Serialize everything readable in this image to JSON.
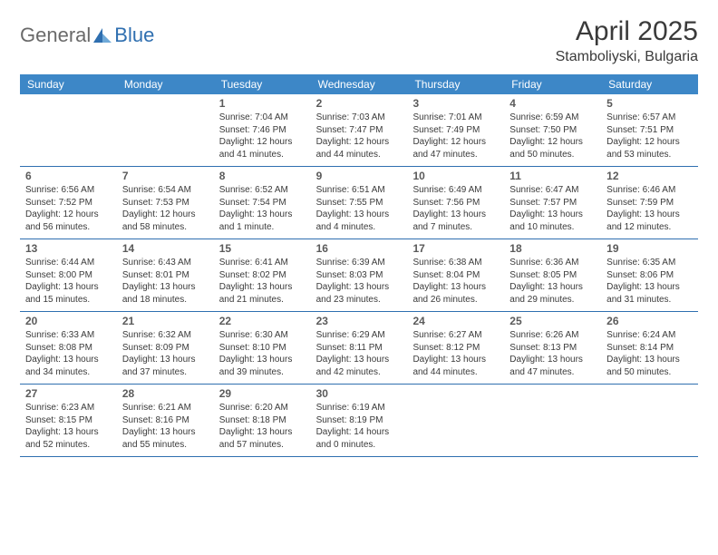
{
  "brand": {
    "general": "General",
    "blue": "Blue"
  },
  "title": "April 2025",
  "location": "Stamboliyski, Bulgaria",
  "colors": {
    "header_bg": "#3d87c7",
    "header_text": "#ffffff",
    "border": "#2f6fb0",
    "body_text": "#3a3a3a",
    "daynum": "#5a5a5a",
    "logo_gray": "#6a6a6a",
    "logo_blue": "#2f6fb0"
  },
  "dow": [
    "Sunday",
    "Monday",
    "Tuesday",
    "Wednesday",
    "Thursday",
    "Friday",
    "Saturday"
  ],
  "weeks": [
    [
      null,
      null,
      {
        "n": "1",
        "sr": "Sunrise: 7:04 AM",
        "ss": "Sunset: 7:46 PM",
        "d1": "Daylight: 12 hours",
        "d2": "and 41 minutes."
      },
      {
        "n": "2",
        "sr": "Sunrise: 7:03 AM",
        "ss": "Sunset: 7:47 PM",
        "d1": "Daylight: 12 hours",
        "d2": "and 44 minutes."
      },
      {
        "n": "3",
        "sr": "Sunrise: 7:01 AM",
        "ss": "Sunset: 7:49 PM",
        "d1": "Daylight: 12 hours",
        "d2": "and 47 minutes."
      },
      {
        "n": "4",
        "sr": "Sunrise: 6:59 AM",
        "ss": "Sunset: 7:50 PM",
        "d1": "Daylight: 12 hours",
        "d2": "and 50 minutes."
      },
      {
        "n": "5",
        "sr": "Sunrise: 6:57 AM",
        "ss": "Sunset: 7:51 PM",
        "d1": "Daylight: 12 hours",
        "d2": "and 53 minutes."
      }
    ],
    [
      {
        "n": "6",
        "sr": "Sunrise: 6:56 AM",
        "ss": "Sunset: 7:52 PM",
        "d1": "Daylight: 12 hours",
        "d2": "and 56 minutes."
      },
      {
        "n": "7",
        "sr": "Sunrise: 6:54 AM",
        "ss": "Sunset: 7:53 PM",
        "d1": "Daylight: 12 hours",
        "d2": "and 58 minutes."
      },
      {
        "n": "8",
        "sr": "Sunrise: 6:52 AM",
        "ss": "Sunset: 7:54 PM",
        "d1": "Daylight: 13 hours",
        "d2": "and 1 minute."
      },
      {
        "n": "9",
        "sr": "Sunrise: 6:51 AM",
        "ss": "Sunset: 7:55 PM",
        "d1": "Daylight: 13 hours",
        "d2": "and 4 minutes."
      },
      {
        "n": "10",
        "sr": "Sunrise: 6:49 AM",
        "ss": "Sunset: 7:56 PM",
        "d1": "Daylight: 13 hours",
        "d2": "and 7 minutes."
      },
      {
        "n": "11",
        "sr": "Sunrise: 6:47 AM",
        "ss": "Sunset: 7:57 PM",
        "d1": "Daylight: 13 hours",
        "d2": "and 10 minutes."
      },
      {
        "n": "12",
        "sr": "Sunrise: 6:46 AM",
        "ss": "Sunset: 7:59 PM",
        "d1": "Daylight: 13 hours",
        "d2": "and 12 minutes."
      }
    ],
    [
      {
        "n": "13",
        "sr": "Sunrise: 6:44 AM",
        "ss": "Sunset: 8:00 PM",
        "d1": "Daylight: 13 hours",
        "d2": "and 15 minutes."
      },
      {
        "n": "14",
        "sr": "Sunrise: 6:43 AM",
        "ss": "Sunset: 8:01 PM",
        "d1": "Daylight: 13 hours",
        "d2": "and 18 minutes."
      },
      {
        "n": "15",
        "sr": "Sunrise: 6:41 AM",
        "ss": "Sunset: 8:02 PM",
        "d1": "Daylight: 13 hours",
        "d2": "and 21 minutes."
      },
      {
        "n": "16",
        "sr": "Sunrise: 6:39 AM",
        "ss": "Sunset: 8:03 PM",
        "d1": "Daylight: 13 hours",
        "d2": "and 23 minutes."
      },
      {
        "n": "17",
        "sr": "Sunrise: 6:38 AM",
        "ss": "Sunset: 8:04 PM",
        "d1": "Daylight: 13 hours",
        "d2": "and 26 minutes."
      },
      {
        "n": "18",
        "sr": "Sunrise: 6:36 AM",
        "ss": "Sunset: 8:05 PM",
        "d1": "Daylight: 13 hours",
        "d2": "and 29 minutes."
      },
      {
        "n": "19",
        "sr": "Sunrise: 6:35 AM",
        "ss": "Sunset: 8:06 PM",
        "d1": "Daylight: 13 hours",
        "d2": "and 31 minutes."
      }
    ],
    [
      {
        "n": "20",
        "sr": "Sunrise: 6:33 AM",
        "ss": "Sunset: 8:08 PM",
        "d1": "Daylight: 13 hours",
        "d2": "and 34 minutes."
      },
      {
        "n": "21",
        "sr": "Sunrise: 6:32 AM",
        "ss": "Sunset: 8:09 PM",
        "d1": "Daylight: 13 hours",
        "d2": "and 37 minutes."
      },
      {
        "n": "22",
        "sr": "Sunrise: 6:30 AM",
        "ss": "Sunset: 8:10 PM",
        "d1": "Daylight: 13 hours",
        "d2": "and 39 minutes."
      },
      {
        "n": "23",
        "sr": "Sunrise: 6:29 AM",
        "ss": "Sunset: 8:11 PM",
        "d1": "Daylight: 13 hours",
        "d2": "and 42 minutes."
      },
      {
        "n": "24",
        "sr": "Sunrise: 6:27 AM",
        "ss": "Sunset: 8:12 PM",
        "d1": "Daylight: 13 hours",
        "d2": "and 44 minutes."
      },
      {
        "n": "25",
        "sr": "Sunrise: 6:26 AM",
        "ss": "Sunset: 8:13 PM",
        "d1": "Daylight: 13 hours",
        "d2": "and 47 minutes."
      },
      {
        "n": "26",
        "sr": "Sunrise: 6:24 AM",
        "ss": "Sunset: 8:14 PM",
        "d1": "Daylight: 13 hours",
        "d2": "and 50 minutes."
      }
    ],
    [
      {
        "n": "27",
        "sr": "Sunrise: 6:23 AM",
        "ss": "Sunset: 8:15 PM",
        "d1": "Daylight: 13 hours",
        "d2": "and 52 minutes."
      },
      {
        "n": "28",
        "sr": "Sunrise: 6:21 AM",
        "ss": "Sunset: 8:16 PM",
        "d1": "Daylight: 13 hours",
        "d2": "and 55 minutes."
      },
      {
        "n": "29",
        "sr": "Sunrise: 6:20 AM",
        "ss": "Sunset: 8:18 PM",
        "d1": "Daylight: 13 hours",
        "d2": "and 57 minutes."
      },
      {
        "n": "30",
        "sr": "Sunrise: 6:19 AM",
        "ss": "Sunset: 8:19 PM",
        "d1": "Daylight: 14 hours",
        "d2": "and 0 minutes."
      },
      null,
      null,
      null
    ]
  ]
}
